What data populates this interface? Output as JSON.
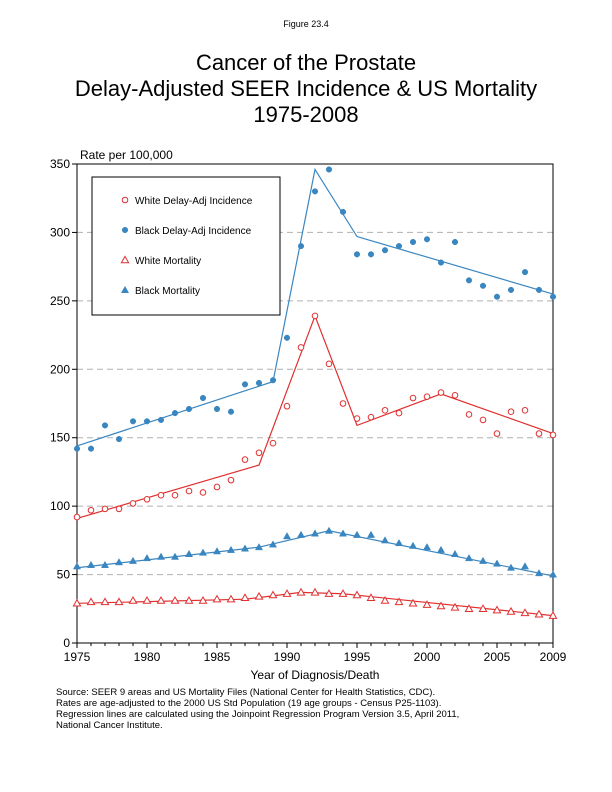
{
  "figure_label": "Figure 23.4",
  "title_lines": [
    "Cancer of the Prostate",
    "Delay-Adjusted SEER Incidence & US Mortality",
    "1975-2008"
  ],
  "footer_lines": [
    "Source: SEER 9 areas and US Mortality Files (National Center for Health Statistics, CDC).",
    "Rates are age-adjusted to the 2000 US Std Population (19 age groups - Census P25-1103).",
    "Regression lines are calculated using the Joinpoint Regression Program Version 3.5, April 2011,",
    "National Cancer Institute."
  ],
  "colors": {
    "white": "#e03030",
    "black": "#3a86c0",
    "grid": "#b0b0b0"
  },
  "chart_data": {
    "type": "scatter",
    "ylabel": "Rate per 100,000",
    "xlabel": "Year of Diagnosis/Death",
    "xlim": [
      1975,
      2009
    ],
    "ylim": [
      0,
      350
    ],
    "xticks": [
      1975,
      1980,
      1985,
      1990,
      1995,
      2000,
      2005,
      2009
    ],
    "yticks": [
      0,
      50,
      100,
      150,
      200,
      250,
      300,
      350
    ],
    "grid": "horizontal dashed",
    "legend_position": "top-left",
    "series": [
      {
        "name": "White Delay-Adj Incidence",
        "marker": "circle-open",
        "color": "#e03030",
        "x": [
          1975,
          1976,
          1977,
          1978,
          1979,
          1980,
          1981,
          1982,
          1983,
          1984,
          1985,
          1986,
          1987,
          1988,
          1989,
          1990,
          1991,
          1992,
          1993,
          1994,
          1995,
          1996,
          1997,
          1998,
          1999,
          2000,
          2001,
          2002,
          2003,
          2004,
          2005,
          2006,
          2007,
          2008,
          2009
        ],
        "y": [
          92,
          97,
          98,
          98,
          102,
          105,
          108,
          108,
          111,
          110,
          114,
          119,
          134,
          139,
          146,
          173,
          216,
          239,
          204,
          175,
          164,
          165,
          170,
          168,
          179,
          180,
          183,
          181,
          167,
          163,
          153,
          169,
          170,
          153,
          152
        ],
        "trend_x": [
          1975,
          1988,
          1992,
          1995,
          2001,
          2009
        ],
        "trend_y": [
          91,
          130,
          239,
          159,
          182,
          153
        ]
      },
      {
        "name": "Black Delay-Adj Incidence",
        "marker": "circle-filled",
        "color": "#3a86c0",
        "x": [
          1975,
          1976,
          1977,
          1978,
          1979,
          1980,
          1981,
          1982,
          1983,
          1984,
          1985,
          1986,
          1987,
          1988,
          1989,
          1990,
          1991,
          1992,
          1993,
          1994,
          1995,
          1996,
          1997,
          1998,
          1999,
          2000,
          2001,
          2002,
          2003,
          2004,
          2005,
          2006,
          2007,
          2008,
          2009
        ],
        "y": [
          142,
          142,
          159,
          149,
          162,
          162,
          163,
          168,
          171,
          179,
          171,
          169,
          189,
          190,
          192,
          223,
          290,
          330,
          346,
          315,
          284,
          284,
          287,
          290,
          293,
          295,
          278,
          293,
          265,
          261,
          253,
          258,
          271,
          258,
          253
        ],
        "trend_x": [
          1975,
          1989,
          1992,
          1995,
          1996,
          2009
        ],
        "trend_y": [
          144,
          191,
          346,
          297,
          294,
          255
        ]
      },
      {
        "name": "White Mortality",
        "marker": "triangle-open",
        "color": "#e03030",
        "x": [
          1975,
          1976,
          1977,
          1978,
          1979,
          1980,
          1981,
          1982,
          1983,
          1984,
          1985,
          1986,
          1987,
          1988,
          1989,
          1990,
          1991,
          1992,
          1993,
          1994,
          1995,
          1996,
          1997,
          1998,
          1999,
          2000,
          2001,
          2002,
          2003,
          2004,
          2005,
          2006,
          2007,
          2008,
          2009
        ],
        "y": [
          29,
          30,
          30,
          30,
          31,
          31,
          31,
          31,
          31,
          31,
          32,
          32,
          33,
          34,
          35,
          36,
          37,
          37,
          36,
          36,
          35,
          33,
          31,
          30,
          29,
          28,
          27,
          26,
          25,
          25,
          24,
          23,
          22,
          21,
          20
        ],
        "trend_x": [
          1975,
          1987,
          1991,
          1994,
          2009
        ],
        "trend_y": [
          29,
          32,
          37,
          36,
          20
        ]
      },
      {
        "name": "Black Mortality",
        "marker": "triangle-filled",
        "color": "#3a86c0",
        "x": [
          1975,
          1976,
          1977,
          1978,
          1979,
          1980,
          1981,
          1982,
          1983,
          1984,
          1985,
          1986,
          1987,
          1988,
          1989,
          1990,
          1991,
          1992,
          1993,
          1994,
          1995,
          1996,
          1997,
          1998,
          1999,
          2000,
          2001,
          2002,
          2003,
          2004,
          2005,
          2006,
          2007,
          2008,
          2009
        ],
        "y": [
          56,
          57,
          57,
          59,
          60,
          62,
          63,
          63,
          65,
          66,
          67,
          68,
          69,
          70,
          72,
          78,
          79,
          80,
          82,
          80,
          79,
          79,
          75,
          73,
          71,
          70,
          68,
          65,
          62,
          60,
          58,
          55,
          56,
          51,
          50
        ],
        "trend_x": [
          1975,
          1988,
          1993,
          2009
        ],
        "trend_y": [
          55,
          70,
          82,
          49
        ]
      }
    ]
  }
}
